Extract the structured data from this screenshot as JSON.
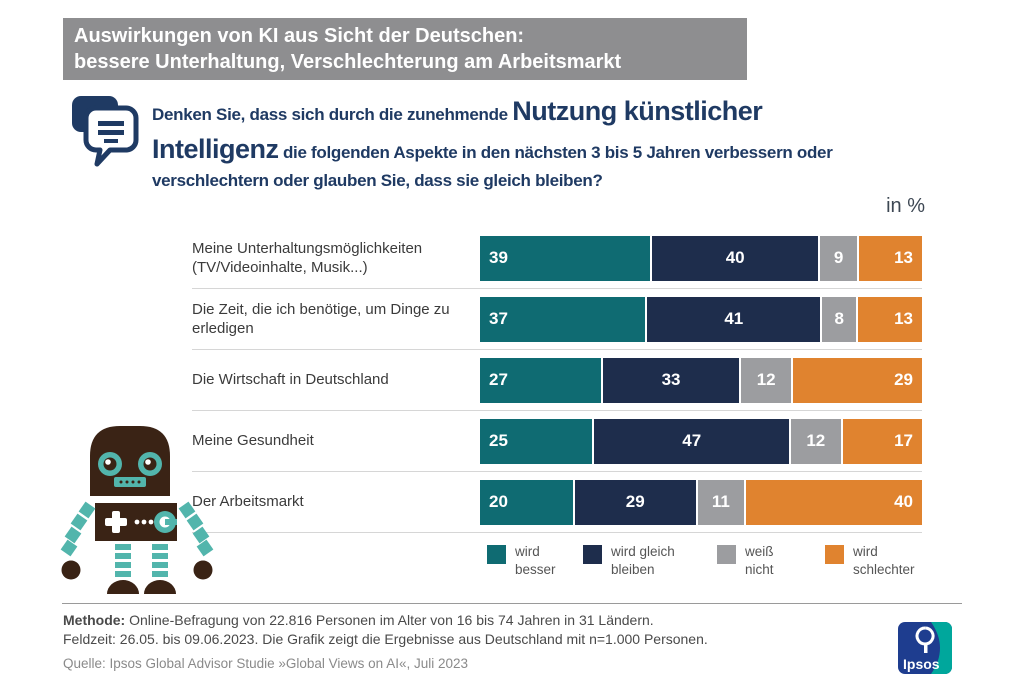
{
  "header": {
    "line1": "Auswirkungen von KI aus Sicht der Deutschen:",
    "line2": "bessere Unterhaltung, Verschlechterung am Arbeitsmarkt"
  },
  "question": {
    "part1": "Denken Sie, dass sich durch die zunehmende ",
    "emphasis": "Nutzung künstlicher Intelligenz",
    "part2": " die folgenden Aspekte in den nächsten 3 bis 5 Jahren verbessern oder verschlechtern oder glauben Sie, dass sie gleich bleiben?"
  },
  "chart_data": {
    "type": "bar",
    "orientation": "horizontal_stacked",
    "unit_label": "in %",
    "xlim": [
      0,
      100
    ],
    "legend_position": "bottom",
    "categories": [
      "Meine Unterhaltungsmöglichkeiten (TV/Videoinhalte, Musik...)",
      "Die Zeit, die ich benötige, um Dinge zu erledigen",
      "Die Wirtschaft in Deutschland",
      "Meine Gesundheit",
      "Der Arbeitsmarkt"
    ],
    "series": [
      {
        "name": "wird besser",
        "legend_lines": [
          "wird",
          "besser"
        ],
        "color": "#0f6b72",
        "values": [
          39,
          37,
          27,
          25,
          20
        ]
      },
      {
        "name": "wird gleich bleiben",
        "legend_lines": [
          "wird gleich",
          "bleiben"
        ],
        "color": "#1e2d4c",
        "values": [
          40,
          41,
          33,
          47,
          29
        ]
      },
      {
        "name": "weiß nicht",
        "legend_lines": [
          "weiß",
          "nicht"
        ],
        "color": "#9c9da0",
        "values": [
          9,
          8,
          12,
          12,
          11
        ]
      },
      {
        "name": "wird schlechter",
        "legend_lines": [
          "wird",
          "schlechter"
        ],
        "color": "#e0832f",
        "values": [
          13,
          13,
          29,
          17,
          40
        ]
      }
    ]
  },
  "footer": {
    "methode_label": "Methode:",
    "methode_rest": "Online-Befragung von 22.816 Personen im Alter von 16 bis 74 Jahren in 31 Ländern.",
    "feldzeit_line": "Feldzeit: 26.05. bis 09.06.2023. Die Grafik zeigt die Ergebnisse aus Deutschland mit n=1.000 Personen.",
    "source": "Quelle: Ipsos Global Advisor Studie »Global Views on AI«, Juli 2023",
    "logo_text": "Ipsos"
  },
  "colors": {
    "banner_bg": "#8e8e90",
    "question_text": "#1f3a63",
    "separator": "#d6d6d6",
    "robot_brown": "#3a2315",
    "robot_teal": "#52b5ac",
    "ipsos_blue": "#1e3d8f",
    "ipsos_teal": "#00a79c"
  }
}
